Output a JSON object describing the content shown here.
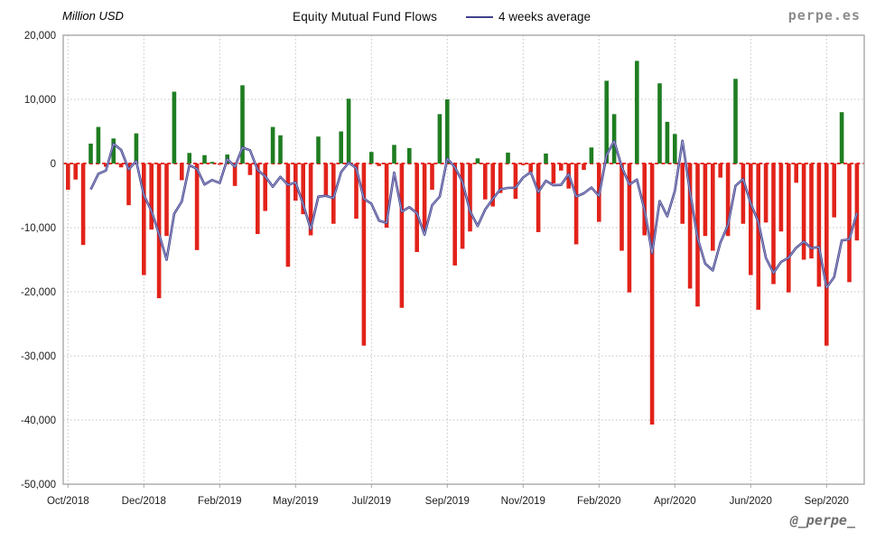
{
  "header": {
    "units_label": "Million USD",
    "title": "Equity Mutual Fund Flows",
    "legend_label": "4 weeks average",
    "watermark": "perpe.es"
  },
  "footer": {
    "signature": "@_perpe_"
  },
  "chart_data": {
    "type": "bar",
    "title": "Equity Mutual Fund Flows",
    "ylabel": "Million USD",
    "ylim": [
      -50000,
      20000
    ],
    "y_tick_step": 10000,
    "y_tick_labels": [
      "20,000",
      "10,000",
      "0",
      "-10,000",
      "-20,000",
      "-30,000",
      "-40,000",
      "-50,000"
    ],
    "grid": true,
    "legend_position": "top",
    "x_tick_labels": [
      "Oct/2018",
      "Dec/2018",
      "Feb/2019",
      "May/2019",
      "Jul/2019",
      "Sep/2019",
      "Nov/2019",
      "Feb/2020",
      "Apr/2020",
      "Jun/2020",
      "Sep/2020"
    ],
    "x_tick_indices": [
      0,
      10,
      20,
      30,
      40,
      50,
      60,
      70,
      80,
      90,
      100
    ],
    "series": [
      {
        "name": "Weekly equity mutual fund flows (Million USD)",
        "type": "bar",
        "values": [
          -4100,
          -2500,
          -12700,
          3100,
          5700,
          -500,
          3900,
          -600,
          -6500,
          4700,
          -17400,
          -10300,
          -21000,
          -11300,
          11200,
          -2600,
          1650,
          -13500,
          1300,
          250,
          -200,
          1400,
          -3500,
          12200,
          -1800,
          -11000,
          -7400,
          5700,
          4400,
          -16100,
          -5800,
          -7900,
          -11200,
          4200,
          -5200,
          -9400,
          5000,
          10100,
          -8600,
          -28400,
          1800,
          -400,
          -10000,
          2900,
          -22500,
          2400,
          -13800,
          -10500,
          -4100,
          7700,
          10000,
          -15900,
          -13300,
          -10600,
          800,
          -5600,
          -6700,
          -4600,
          1700,
          -5500,
          -250,
          -1350,
          -10700,
          1550,
          -3100,
          -1100,
          -3900,
          -12600,
          -1000,
          2500,
          -9100,
          12900,
          7700,
          -13600,
          -20100,
          16000,
          -11200,
          -40700,
          12500,
          6500,
          4600,
          -9400,
          -19500,
          -22300,
          -11300,
          -13600,
          -2200,
          -11300,
          13200,
          -9400,
          -17400,
          -22800,
          -9200,
          -18800,
          -10600,
          -20100,
          -3000,
          -15000,
          -14800,
          -19200,
          -28400,
          -8400,
          8000,
          -18500,
          -12000
        ]
      },
      {
        "name": "4 weeks average",
        "type": "line",
        "derived": "trailing mean of previous 4 weekly values, drawn from week 4 onward"
      }
    ],
    "colors": {
      "positive_bar": "#1f7d21",
      "negative_bar": "#e2231a",
      "average_line": "#3f3f8c",
      "average_line_core": "#a9a9d0",
      "zero_line": "#e2231a",
      "gridline": "#c3c3c3",
      "plot_border": "#a9a9a9",
      "tick_label": "#1c1c1c"
    }
  }
}
